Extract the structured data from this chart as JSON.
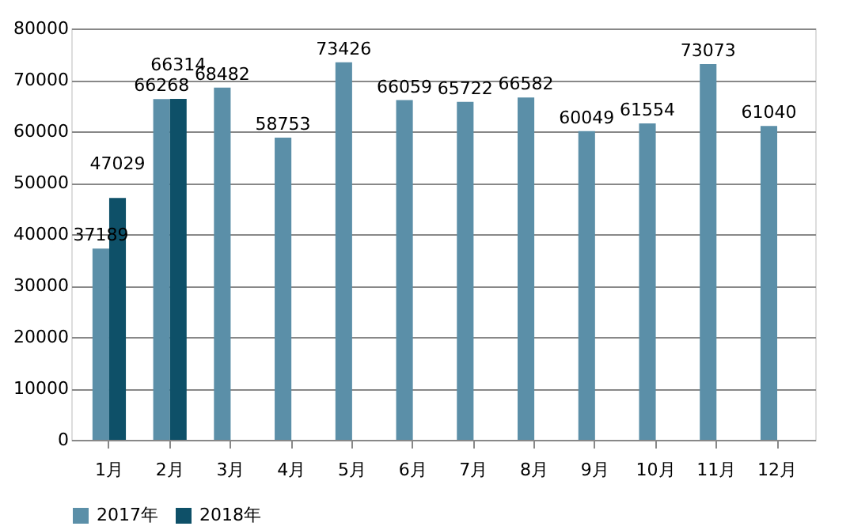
{
  "chart_data": {
    "type": "bar",
    "categories": [
      "1月",
      "2月",
      "3月",
      "4月",
      "5月",
      "6月",
      "7月",
      "8月",
      "9月",
      "10月",
      "11月",
      "12月"
    ],
    "series": [
      {
        "name": "2017年",
        "color": "#5b8fa8",
        "values": [
          37189,
          66268,
          68482,
          58753,
          73426,
          66059,
          65722,
          66582,
          60049,
          61554,
          73073,
          61040
        ]
      },
      {
        "name": "2018年",
        "color": "#0e5068",
        "values": [
          47029,
          66314,
          null,
          null,
          null,
          null,
          null,
          null,
          null,
          null,
          null,
          null
        ]
      }
    ],
    "ylim": [
      0,
      80000
    ],
    "yticks": [
      0,
      10000,
      20000,
      30000,
      40000,
      50000,
      60000,
      70000,
      80000
    ],
    "grid": "y",
    "legend": "bottom",
    "data_labels": true
  }
}
